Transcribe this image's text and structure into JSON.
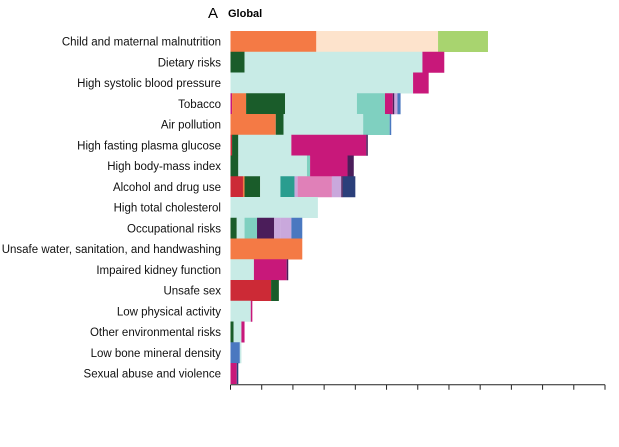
{
  "panel": {
    "letter": "A",
    "title": "Global"
  },
  "colors": {
    "orange": "#f47a45",
    "peach": "#fde3cc",
    "lightgreen": "#a8d46f",
    "darkgreen": "#1a5c2a",
    "mint": "#c8ebe6",
    "teal": "#7fd0c0",
    "darkteal": "#2a9d8f",
    "magenta": "#c8187a",
    "pink": "#e080b8",
    "lavender": "#c9a8dc",
    "purple": "#4b1d5a",
    "blue": "#4a78c0",
    "navy": "#2b3f7a",
    "red": "#cc2a36"
  },
  "chart_data": {
    "type": "bar",
    "orientation": "horizontal",
    "stacked": true,
    "title": "Global",
    "xlim": [
      0,
      12
    ],
    "x_ticks": [
      0,
      1,
      2,
      3,
      4,
      5,
      6,
      7,
      8,
      9,
      10,
      11,
      12
    ],
    "grid": false,
    "categories": [
      "Child and maternal malnutrition",
      "Dietary risks",
      "High systolic blood pressure",
      "Tobacco",
      "Air pollution",
      "High fasting plasma glucose",
      "High body-mass index",
      "Alcohol and drug use",
      "High total cholesterol",
      "Occupational risks",
      "Unsafe water, sanitation, and handwashing",
      "Impaired kidney function",
      "Unsafe sex",
      "Low physical activity",
      "Other environmental risks",
      "Low bone mineral density",
      "Sexual abuse and violence"
    ],
    "rows": [
      [
        [
          "orange",
          2.75
        ],
        [
          "peach",
          3.9
        ],
        [
          "lightgreen",
          1.6
        ]
      ],
      [
        [
          "darkgreen",
          0.45
        ],
        [
          "mint",
          5.7
        ],
        [
          "magenta",
          0.7
        ]
      ],
      [
        [
          "mint",
          5.85
        ],
        [
          "magenta",
          0.5
        ]
      ],
      [
        [
          "magenta",
          0.05
        ],
        [
          "orange",
          0.45
        ],
        [
          "darkgreen",
          1.25
        ],
        [
          "mint",
          2.3
        ],
        [
          "teal",
          0.9
        ],
        [
          "magenta",
          0.25
        ],
        [
          "purple",
          0.05
        ],
        [
          "lavender",
          0.1
        ],
        [
          "blue",
          0.1
        ]
      ],
      [
        [
          "orange",
          1.45
        ],
        [
          "darkgreen",
          0.25
        ],
        [
          "mint",
          2.55
        ],
        [
          "teal",
          0.85
        ],
        [
          "blue",
          0.05
        ]
      ],
      [
        [
          "red",
          0.05
        ],
        [
          "darkgreen",
          0.2
        ],
        [
          "mint",
          1.7
        ],
        [
          "magenta",
          2.4
        ],
        [
          "purple",
          0.05
        ]
      ],
      [
        [
          "darkgreen",
          0.25
        ],
        [
          "mint",
          2.2
        ],
        [
          "teal",
          0.1
        ],
        [
          "magenta",
          1.2
        ],
        [
          "purple",
          0.2
        ]
      ],
      [
        [
          "red",
          0.4
        ],
        [
          "orange",
          0.05
        ],
        [
          "darkgreen",
          0.5
        ],
        [
          "mint",
          0.65
        ],
        [
          "darkteal",
          0.45
        ],
        [
          "lavender",
          0.1
        ],
        [
          "pink",
          1.1
        ],
        [
          "lavender",
          0.3
        ],
        [
          "purple",
          0.05
        ],
        [
          "navy",
          0.4
        ]
      ],
      [
        [
          "mint",
          2.8
        ]
      ],
      [
        [
          "darkgreen",
          0.2
        ],
        [
          "mint",
          0.25
        ],
        [
          "teal",
          0.4
        ],
        [
          "purple",
          0.55
        ],
        [
          "lavender",
          0.2
        ],
        [
          "lavender",
          0.35
        ],
        [
          "blue",
          0.35
        ]
      ],
      [
        [
          "orange",
          2.3
        ]
      ],
      [
        [
          "mint",
          0.75
        ],
        [
          "magenta",
          1.05
        ],
        [
          "purple",
          0.05
        ]
      ],
      [
        [
          "red",
          1.3
        ],
        [
          "darkgreen",
          0.25
        ]
      ],
      [
        [
          "mint",
          0.65
        ],
        [
          "magenta",
          0.05
        ]
      ],
      [
        [
          "darkgreen",
          0.1
        ],
        [
          "mint",
          0.25
        ],
        [
          "magenta",
          0.1
        ]
      ],
      [
        [
          "blue",
          0.3
        ],
        [
          "mint",
          0.05
        ]
      ],
      [
        [
          "magenta",
          0.2
        ],
        [
          "navy",
          0.05
        ]
      ]
    ]
  }
}
